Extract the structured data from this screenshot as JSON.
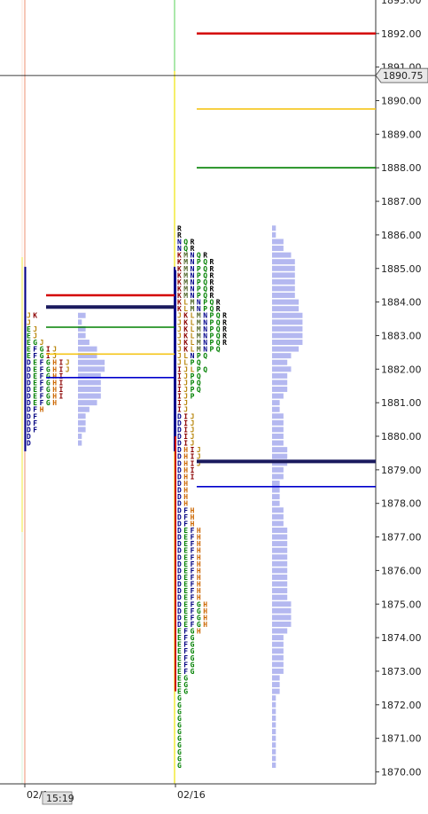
{
  "chart_data": {
    "type": "market-profile",
    "ylim": [
      1869.5,
      1893.3
    ],
    "y_ticks": [
      1870,
      1871,
      1872,
      1873,
      1874,
      1875,
      1876,
      1877,
      1878,
      1879,
      1880,
      1881,
      1882,
      1883,
      1884,
      1885,
      1886,
      1887,
      1888,
      1889,
      1890,
      1891,
      1892
    ],
    "y_tick_labels": [
      "1870.00",
      "1871.00",
      "1872.00",
      "1873.00",
      "1874.00",
      "1875.00",
      "1876.00",
      "1877.00",
      "1878.00",
      "1879.00",
      "1880.00",
      "1881.00",
      "1882.00",
      "1883.00",
      "1884.00",
      "1885.00",
      "1886.00",
      "1887.00",
      "1888.00",
      "1889.00",
      "1890.00",
      "1891.00",
      "1892.00"
    ],
    "top_partial_label": "1893.00",
    "current_price": {
      "value": 1890.75,
      "label": "1890.75"
    },
    "x_labels": [
      {
        "text": "02/1",
        "session": 0
      },
      {
        "text": "02/16",
        "session": 1
      }
    ],
    "time_label": "15:19",
    "tpo_colors": {
      "D": "#00008b",
      "E": "#008000",
      "F": "#000080",
      "G": "#008000",
      "H": "#cc6600",
      "I": "#8b0000",
      "J": "#b8860b",
      "K": "#8b0000",
      "L": "#b8860b",
      "M": "#556b2f",
      "N": "#00008b",
      "P": "#008000",
      "Q": "#008000",
      "R": "#000000"
    },
    "sessions": [
      {
        "name": "02/1",
        "low": 1879.8,
        "rows": [
          "D",
          "D",
          "DF",
          "DF",
          "DF",
          "DFH",
          "DEFGH",
          "DEFGHI",
          "DEFGHI",
          "DEFGHI",
          "DEFGHI",
          "DEFGHIJ",
          "DEFGHIJ",
          "EFGIJ",
          "EFGIJ",
          "EGJ",
          "EJ",
          "EJ",
          "J",
          "JK"
        ],
        "overlays": [
          {
            "type": "poc",
            "price": 1883.85,
            "color": "#1a1a5e"
          },
          {
            "type": "vah",
            "price": 1884.2,
            "color": "#d40000"
          },
          {
            "type": "val",
            "price": 1881.75,
            "color": "#0000cc"
          },
          {
            "type": "mid",
            "price": 1883.25,
            "color": "#008000"
          },
          {
            "type": "vwap",
            "price": 1882.45,
            "color": "#f5c518"
          }
        ]
      },
      {
        "name": "02/16",
        "low": 1870.2,
        "rows": [
          "G",
          "G",
          "G",
          "G",
          "G",
          "G",
          "G",
          "G",
          "G",
          "G",
          "G",
          "EG",
          "EG",
          "EG",
          "EFG",
          "EFG",
          "EFG",
          "EFG",
          "EFG",
          "EFG",
          "EFGH",
          "DEFGH",
          "DEFGH",
          "DEFGH",
          "DEFGH",
          "DEFH",
          "DEFH",
          "DEFH",
          "DEFH",
          "DEFH",
          "DEFH",
          "DEFH",
          "DEFH",
          "DEFH",
          "DEFH",
          "DEFH",
          "DFH",
          "DFH",
          "DFH",
          "DH",
          "DH",
          "DH",
          "DH",
          "DHI",
          "DHI",
          "DHIJ",
          "DHIJ",
          "DHIJ",
          "DIJ",
          "DIJ",
          "DIJ",
          "DIJ",
          "DIJ",
          "IJ",
          "IJ",
          "IJP",
          "IJPQ",
          "IJPQ",
          "IJPQ",
          "IJLPQ",
          "JLPQ",
          "JLNPQ",
          "JKLMNPQ",
          "JKLMNPQR",
          "JKLMNPQR",
          "JKLMNPQR",
          "JKLMNPQR",
          "JKLMNPQR",
          "KLMNPQR",
          "KLMNPQR",
          "KMNPQR",
          "KMNPQR",
          "KMNPQR",
          "KMNPQR",
          "KMNPQR",
          "KMNPQR",
          "KMNQR",
          "NQR",
          "NQR",
          "R",
          "R"
        ],
        "overlays": [
          {
            "type": "poc",
            "price": 1879.25,
            "color": "#1a1a5e"
          },
          {
            "type": "vah",
            "price": 1892.0,
            "color": "#d40000"
          },
          {
            "type": "val",
            "price": 1878.5,
            "color": "#0000cc"
          },
          {
            "type": "mid",
            "price": 1888.0,
            "color": "#008000"
          },
          {
            "type": "vwap",
            "price": 1889.75,
            "color": "#f5c518"
          }
        ]
      }
    ]
  }
}
